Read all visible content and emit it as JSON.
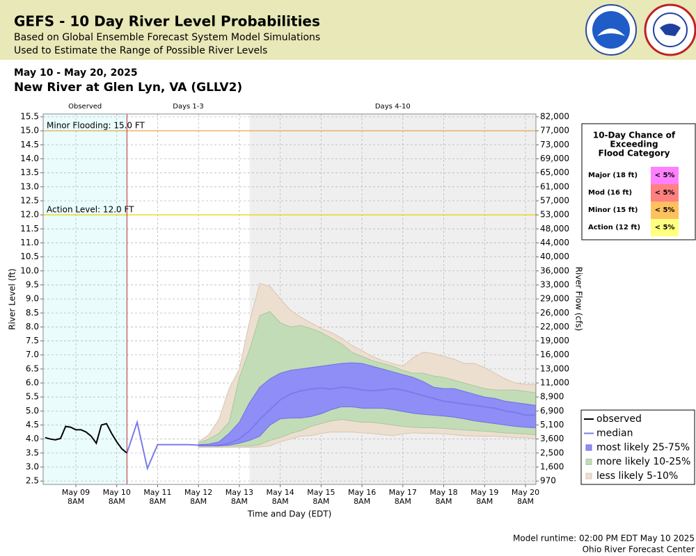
{
  "chart_data": {
    "type": "line",
    "title": "GEFS - 10 Day River Level Probabilities",
    "subtitle": [
      "Based on Global Ensemble Forecast System Model Simulations",
      "Used to Estimate the Range of Possible River Levels"
    ],
    "date_range": "May 10 - May 20, 2025",
    "location": "New River at Glen Lyn, VA (GLLV2)",
    "footer": [
      "Model runtime: 02:00 PM EDT May 10 2025",
      "Ohio River Forecast Center"
    ],
    "xlabel": "Time and Day (EDT)",
    "ylabel": "River Level (ft)",
    "y2label": "River Flow (cfs)",
    "xlim": [
      "2025-05-08T12:48",
      "2025-05-20T14:08"
    ],
    "ylim": [
      2.38,
      15.6
    ],
    "now": "2025-05-10T14:00",
    "regions": [
      {
        "label": "Observed",
        "start": "2025-05-08T12:48",
        "end": "2025-05-10T14:00",
        "color": "#eafcfc"
      },
      {
        "label": "Days 1-3",
        "start": "2025-05-10T14:00",
        "end": "2025-05-13T14:00",
        "color": "#ffffff"
      },
      {
        "label": "Days 4-10",
        "start": "2025-05-13T14:00",
        "end": "2025-05-20T14:08",
        "color": "#efefef"
      }
    ],
    "thresholds": [
      {
        "label": "Minor Flooding: 15.0 FT",
        "value": 15,
        "color": "#e8a040"
      },
      {
        "label": "Action Level: 12.0 FT",
        "value": 12,
        "color": "#e8d000"
      }
    ],
    "xticks": [
      {
        "value": "2025-05-09T08:00",
        "label": [
          "May 09",
          "8AM"
        ]
      },
      {
        "value": "2025-05-10T08:00",
        "label": [
          "May 10",
          "8AM"
        ]
      },
      {
        "value": "2025-05-11T08:00",
        "label": [
          "May 11",
          "8AM"
        ]
      },
      {
        "value": "2025-05-12T08:00",
        "label": [
          "May 12",
          "8AM"
        ]
      },
      {
        "value": "2025-05-13T08:00",
        "label": [
          "May 13",
          "8AM"
        ]
      },
      {
        "value": "2025-05-14T08:00",
        "label": [
          "May 14",
          "8AM"
        ]
      },
      {
        "value": "2025-05-15T08:00",
        "label": [
          "May 15",
          "8AM"
        ]
      },
      {
        "value": "2025-05-16T08:00",
        "label": [
          "May 16",
          "8AM"
        ]
      },
      {
        "value": "2025-05-17T08:00",
        "label": [
          "May 17",
          "8AM"
        ]
      },
      {
        "value": "2025-05-18T08:00",
        "label": [
          "May 18",
          "8AM"
        ]
      },
      {
        "value": "2025-05-19T08:00",
        "label": [
          "May 19",
          "8AM"
        ]
      },
      {
        "value": "2025-05-20T08:00",
        "label": [
          "May 20",
          "8AM"
        ]
      }
    ],
    "yticks": [
      2.5,
      {
        "value": 3,
        "label": "3.0"
      },
      3.5,
      {
        "value": 4,
        "label": "4.0"
      },
      4.5,
      {
        "value": 5,
        "label": "5.0"
      },
      5.5,
      {
        "value": 6,
        "label": "6.0"
      },
      6.5,
      {
        "value": 7,
        "label": "7.0"
      },
      7.5,
      {
        "value": 8,
        "label": "8.0"
      },
      8.5,
      {
        "value": 9,
        "label": "9.0"
      },
      9.5,
      {
        "value": 10,
        "label": "10.0"
      },
      10.5,
      {
        "value": 11,
        "label": "11.0"
      },
      11.5,
      {
        "value": 12,
        "label": "12.0"
      },
      12.5,
      {
        "value": 13,
        "label": "13.0"
      },
      13.5,
      {
        "value": 14,
        "label": "14.0"
      },
      14.5,
      {
        "value": 15,
        "label": "15.0"
      },
      15.5
    ],
    "y2ticks": [
      970,
      {
        "value": 1600,
        "label": "1,600"
      },
      {
        "value": 2500,
        "label": "2,500"
      },
      {
        "value": 3600,
        "label": "3,600"
      },
      {
        "value": 5100,
        "label": "5,100"
      },
      {
        "value": 6900,
        "label": "6,900"
      },
      {
        "value": 8900,
        "label": "8,900"
      },
      {
        "value": 11000,
        "label": "11,000"
      },
      {
        "value": 13000,
        "label": "13,000"
      },
      {
        "value": 16000,
        "label": "16,000"
      },
      {
        "value": 19000,
        "label": "19,000"
      },
      {
        "value": 22000,
        "label": "22,000"
      },
      {
        "value": 26000,
        "label": "26,000"
      },
      {
        "value": 29000,
        "label": "29,000"
      },
      {
        "value": 33000,
        "label": "33,000"
      },
      {
        "value": 36000,
        "label": "36,000"
      },
      {
        "value": 40000,
        "label": "40,000"
      },
      {
        "value": 44000,
        "label": "44,000"
      },
      {
        "value": 48000,
        "label": "48,000"
      },
      {
        "value": 53000,
        "label": "53,000"
      },
      {
        "value": 57000,
        "label": "57,000"
      },
      {
        "value": 61000,
        "label": "61,000"
      },
      {
        "value": 65000,
        "label": "65,000"
      },
      {
        "value": 69000,
        "label": "69,000"
      },
      {
        "value": 73000,
        "label": "73,000"
      },
      {
        "value": 77000,
        "label": "77,000"
      },
      {
        "value": 82000,
        "label": "82,000"
      }
    ],
    "grid": true,
    "x": [
      "2025-05-10T14:00",
      "2025-05-10T20:00",
      "2025-05-11T02:00",
      "2025-05-11T08:00",
      "2025-05-11T14:00",
      "2025-05-11T20:00",
      "2025-05-12T02:00",
      "2025-05-12T08:00",
      "2025-05-12T14:00",
      "2025-05-12T20:00",
      "2025-05-13T02:00",
      "2025-05-13T08:00",
      "2025-05-13T14:00",
      "2025-05-13T20:00",
      "2025-05-14T02:00",
      "2025-05-14T08:00",
      "2025-05-14T14:00",
      "2025-05-14T20:00",
      "2025-05-15T02:00",
      "2025-05-15T08:00",
      "2025-05-15T14:00",
      "2025-05-15T20:00",
      "2025-05-16T02:00",
      "2025-05-16T08:00",
      "2025-05-16T14:00",
      "2025-05-16T20:00",
      "2025-05-17T02:00",
      "2025-05-17T08:00",
      "2025-05-17T14:00",
      "2025-05-17T20:00",
      "2025-05-18T02:00",
      "2025-05-18T08:00",
      "2025-05-18T14:00",
      "2025-05-18T20:00",
      "2025-05-19T02:00",
      "2025-05-19T08:00",
      "2025-05-19T14:00",
      "2025-05-19T20:00",
      "2025-05-20T02:00",
      "2025-05-20T08:00",
      "2025-05-20T14:00"
    ],
    "series": [
      {
        "name": "less likely 5-10%",
        "color": "#ecdfd0",
        "edge": "#d8c4b0",
        "upper": [
          null,
          null,
          null,
          null,
          null,
          null,
          null,
          3.9,
          4.15,
          4.7,
          5.8,
          6.5,
          8.2,
          9.55,
          9.45,
          9.0,
          8.6,
          8.35,
          8.15,
          7.95,
          7.8,
          7.6,
          7.35,
          7.15,
          6.95,
          6.8,
          6.7,
          6.6,
          6.9,
          7.1,
          7.05,
          6.95,
          6.85,
          6.7,
          6.7,
          6.55,
          6.35,
          6.15,
          6.0,
          5.95,
          5.95
        ],
        "lower": [
          null,
          null,
          null,
          null,
          null,
          null,
          null,
          3.7,
          3.7,
          3.7,
          3.7,
          3.7,
          3.7,
          3.72,
          3.75,
          3.9,
          4.0,
          4.1,
          4.12,
          4.2,
          4.25,
          4.25,
          4.25,
          4.22,
          4.2,
          4.15,
          4.12,
          4.18,
          4.22,
          4.2,
          4.2,
          4.18,
          4.15,
          4.12,
          4.1,
          4.1,
          4.1,
          4.08,
          4.05,
          4.05,
          4.0
        ]
      },
      {
        "name": "more likely 10-25%",
        "color": "#c2dcb8",
        "edge": "#a8c89c",
        "upper": [
          null,
          null,
          null,
          null,
          null,
          null,
          null,
          3.85,
          4.0,
          4.2,
          4.6,
          6.2,
          7.2,
          8.4,
          8.55,
          8.15,
          8.0,
          8.05,
          7.95,
          7.8,
          7.6,
          7.4,
          7.1,
          6.95,
          6.8,
          6.7,
          6.6,
          6.45,
          6.35,
          6.35,
          6.25,
          6.2,
          6.1,
          6.0,
          5.9,
          5.8,
          5.75,
          5.75,
          5.75,
          5.7,
          5.65
        ],
        "lower": [
          null,
          null,
          null,
          null,
          null,
          null,
          null,
          3.75,
          3.75,
          3.75,
          3.75,
          3.75,
          3.75,
          3.8,
          3.95,
          4.05,
          4.2,
          4.3,
          4.45,
          4.55,
          4.65,
          4.7,
          4.65,
          4.6,
          4.6,
          4.55,
          4.5,
          4.45,
          4.42,
          4.4,
          4.4,
          4.38,
          4.35,
          4.32,
          4.3,
          4.28,
          4.25,
          4.22,
          4.2,
          4.18,
          4.15
        ]
      },
      {
        "name": "most likely 25-75%",
        "color": "#8e8ef6",
        "edge": "#7070e0",
        "upper": [
          null,
          null,
          null,
          null,
          null,
          null,
          null,
          3.8,
          3.82,
          3.9,
          4.2,
          4.6,
          5.3,
          5.85,
          6.15,
          6.35,
          6.45,
          6.5,
          6.55,
          6.6,
          6.65,
          6.7,
          6.72,
          6.7,
          6.6,
          6.5,
          6.4,
          6.3,
          6.2,
          6.05,
          5.85,
          5.8,
          5.8,
          5.7,
          5.6,
          5.5,
          5.45,
          5.35,
          5.3,
          5.25,
          5.2
        ],
        "lower": [
          null,
          null,
          null,
          null,
          null,
          null,
          null,
          3.75,
          3.75,
          3.75,
          3.78,
          3.85,
          3.95,
          4.1,
          4.5,
          4.72,
          4.75,
          4.75,
          4.8,
          4.9,
          5.05,
          5.15,
          5.15,
          5.1,
          5.1,
          5.1,
          5.05,
          4.98,
          4.92,
          4.88,
          4.85,
          4.82,
          4.78,
          4.72,
          4.65,
          4.6,
          4.55,
          4.5,
          4.45,
          4.42,
          4.4
        ]
      },
      {
        "name": "median",
        "color": "#7b7bea",
        "values": [
          3.5,
          4.6,
          2.95,
          3.8,
          3.8,
          3.8,
          3.8,
          3.78,
          3.77,
          3.78,
          3.85,
          4.0,
          4.3,
          4.7,
          5.05,
          5.4,
          5.6,
          5.72,
          5.78,
          5.82,
          5.78,
          5.85,
          5.82,
          5.75,
          5.72,
          5.75,
          5.8,
          5.75,
          5.65,
          5.55,
          5.45,
          5.35,
          5.3,
          5.25,
          5.2,
          5.15,
          5.1,
          5.0,
          4.95,
          4.85,
          4.85
        ]
      },
      {
        "name": "observed",
        "color": "#000000",
        "x": [
          "2025-05-08T14:00",
          "2025-05-08T17:00",
          "2025-05-08T20:00",
          "2025-05-08T23:00",
          "2025-05-09T02:00",
          "2025-05-09T05:00",
          "2025-05-09T08:00",
          "2025-05-09T11:00",
          "2025-05-09T14:00",
          "2025-05-09T17:00",
          "2025-05-09T20:00",
          "2025-05-09T23:00",
          "2025-05-10T02:00",
          "2025-05-10T05:00",
          "2025-05-10T08:00",
          "2025-05-10T11:00",
          "2025-05-10T14:00"
        ],
        "values": [
          4.05,
          4.0,
          3.97,
          4.02,
          4.45,
          4.42,
          4.33,
          4.33,
          4.25,
          4.1,
          3.85,
          4.5,
          4.55,
          4.2,
          3.9,
          3.65,
          3.5
        ]
      }
    ],
    "legend_order": [
      4,
      3,
      2,
      1,
      0
    ],
    "flood_table": {
      "title": [
        "10-Day Chance of",
        "Exceeding",
        "Flood Category"
      ],
      "rows": [
        {
          "category": "Major (18 ft)",
          "chance": "< 5%",
          "color": "#ff80ff"
        },
        {
          "category": "Mod (16 ft)",
          "chance": "< 5%",
          "color": "#ff8080"
        },
        {
          "category": "Minor (15 ft)",
          "chance": "< 5%",
          "color": "#ffc060"
        },
        {
          "category": "Action (12 ft)",
          "chance": "< 5%",
          "color": "#ffff80"
        }
      ]
    }
  }
}
